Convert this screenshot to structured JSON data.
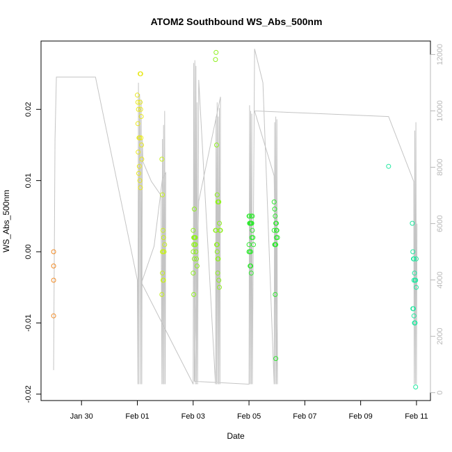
{
  "chart_data": {
    "type": "scatter",
    "title": "ATOM2 Southbound WS_Abs_500nm",
    "xlabel": "Date",
    "ylabel": "WS_Abs_500nm",
    "x_ticks": [
      "Jan 30",
      "Feb 01",
      "Feb 03",
      "Feb 05",
      "Feb 07",
      "Feb 09",
      "Feb 11"
    ],
    "x_tick_days": [
      -1,
      1,
      3,
      5,
      7,
      9,
      11
    ],
    "xlim": [
      -2.45,
      11.5
    ],
    "y_ticks": [
      "-0.02",
      "-0.01",
      "0.00",
      "0.01",
      "0.02"
    ],
    "y_tick_values": [
      -0.02,
      -0.01,
      0.0,
      0.01,
      0.02
    ],
    "ylim": [
      -0.0209,
      0.0296
    ],
    "y2_ticks": [
      "0",
      "2000",
      "4000",
      "6000",
      "8000",
      "10000",
      "12000"
    ],
    "y2_tick_values": [
      0,
      2000,
      4000,
      6000,
      8000,
      10000,
      12000
    ],
    "y2lim": [
      -280,
      12480
    ],
    "grid": false,
    "colors": {
      "orange": "#f28c28",
      "yellow": "#e8e820",
      "yellowgreen": "#c8f020",
      "lime": "#90f020",
      "green": "#30e830",
      "teal": "#20e8a0",
      "line": "#c4c4c4",
      "right_axis": "#b8b8b8"
    },
    "series": [
      {
        "color_key": "orange",
        "x": [
          -2.0,
          -2.0,
          -2.0,
          -2.0
        ],
        "y": [
          0.0,
          -0.002,
          -0.004,
          -0.009
        ]
      },
      {
        "color_key": "yellow",
        "x": [
          1.0,
          1.02,
          1.04,
          1.06,
          1.08,
          1.1,
          1.12,
          1.14,
          1.16,
          1.05,
          1.07,
          1.09,
          1.02,
          1.03,
          1.11,
          1.13,
          1.15,
          1.1,
          1.12
        ],
        "y": [
          0.022,
          0.021,
          0.02,
          0.016,
          0.016,
          0.025,
          0.025,
          0.019,
          0.013,
          0.011,
          0.012,
          0.01,
          0.018,
          0.014,
          0.009,
          0.016,
          0.015,
          0.021,
          0.02
        ]
      },
      {
        "color_key": "yellowgreen",
        "x": [
          1.88,
          1.9,
          1.92,
          1.94,
          1.96,
          1.98,
          1.9,
          1.92,
          1.88,
          1.94,
          1.9,
          1.92
        ],
        "y": [
          0.013,
          0.008,
          0.003,
          0.002,
          0.0,
          0.001,
          -0.003,
          -0.004,
          -0.006,
          -0.004,
          0.0,
          0.0
        ]
      },
      {
        "color_key": "lime",
        "x": [
          3.0,
          3.02,
          3.04,
          3.06,
          3.08,
          3.1,
          3.12,
          3.14,
          3.0,
          3.02,
          3.04,
          3.0,
          3.02,
          3.06,
          3.08,
          3.04
        ],
        "y": [
          0.003,
          0.002,
          0.002,
          0.001,
          0.001,
          0.0,
          -0.001,
          -0.002,
          -0.003,
          -0.006,
          0.006,
          0.0,
          0.001,
          0.002,
          0.002,
          -0.001
        ]
      },
      {
        "color_key": "lime",
        "x": [
          3.8,
          3.82,
          3.84,
          3.86,
          3.88,
          3.9,
          3.92,
          3.94,
          3.96,
          3.98,
          3.84,
          3.86,
          3.88,
          3.9,
          3.92,
          3.94,
          3.8,
          3.82,
          3.86,
          3.88
        ],
        "y": [
          0.027,
          0.028,
          0.015,
          0.008,
          0.007,
          0.007,
          0.007,
          0.004,
          0.003,
          0.003,
          0.001,
          0.001,
          -0.001,
          -0.001,
          -0.004,
          -0.005,
          0.003,
          0.003,
          0.0,
          -0.003
        ]
      },
      {
        "color_key": "green",
        "x": [
          5.0,
          5.02,
          5.04,
          5.06,
          5.08,
          5.1,
          5.12,
          5.14,
          5.16,
          5.0,
          5.02,
          5.04,
          5.06,
          5.08,
          5.1,
          5.12,
          5.0,
          5.02,
          5.04,
          5.06,
          5.08
        ],
        "y": [
          0.005,
          0.005,
          0.004,
          0.004,
          0.004,
          0.004,
          0.003,
          0.002,
          0.001,
          0.0,
          0.0,
          -0.002,
          -0.002,
          -0.003,
          0.002,
          0.005,
          0.001,
          0.004,
          0.004,
          0.0,
          0.005
        ]
      },
      {
        "color_key": "green",
        "x": [
          5.9,
          5.92,
          5.94,
          5.96,
          5.98,
          6.0,
          6.02,
          5.94,
          5.96,
          5.98,
          5.9,
          5.92,
          5.94,
          5.96,
          5.98
        ],
        "y": [
          0.007,
          0.006,
          0.005,
          0.004,
          0.003,
          0.003,
          0.002,
          0.001,
          0.001,
          0.002,
          0.003,
          0.001,
          -0.006,
          -0.015,
          0.004
        ]
      },
      {
        "color_key": "teal",
        "x": [
          10.0
        ],
        "y": [
          0.012
        ]
      },
      {
        "color_key": "teal",
        "x": [
          10.85,
          10.87,
          10.89,
          10.91,
          10.93,
          10.95,
          10.97,
          10.99,
          10.87,
          10.89,
          10.91,
          10.93,
          10.95,
          10.97,
          10.99,
          10.91,
          10.93
        ],
        "y": [
          0.004,
          0.0,
          -0.001,
          -0.001,
          -0.003,
          -0.004,
          -0.004,
          -0.005,
          -0.008,
          -0.008,
          -0.009,
          -0.01,
          -0.01,
          -0.019,
          -0.001,
          -0.004,
          -0.01
        ]
      }
    ],
    "line_series": {
      "axis": "right",
      "x": [
        -2.0,
        -1.95,
        -1.9,
        -0.5,
        1.0,
        1.02,
        1.04,
        1.06,
        1.08,
        1.1,
        1.12,
        1.14,
        1.16,
        1.18,
        1.2,
        1.5,
        1.85,
        1.88,
        1.9,
        1.92,
        1.94,
        1.96,
        1.98,
        2.0,
        2.02,
        1.9,
        1.6,
        1.15,
        2.95,
        3.0,
        3.02,
        3.04,
        3.06,
        3.08,
        3.1,
        3.12,
        3.14,
        3.16,
        3.2,
        3.8,
        3.82,
        3.84,
        3.86,
        3.88,
        3.9,
        3.92,
        3.94,
        3.96,
        3.98,
        3.2,
        3.05,
        5.0,
        5.02,
        5.04,
        5.06,
        5.08,
        5.1,
        5.12,
        5.2,
        5.5,
        5.9,
        5.92,
        5.94,
        5.96,
        5.98,
        6.0,
        6.02,
        5.9,
        5.2,
        10.0,
        10.9,
        10.92,
        10.94,
        10.96,
        10.98,
        11.0,
        11.02
      ],
      "y": [
        800,
        9000,
        11200,
        11200,
        4000,
        300,
        11000,
        300,
        10600,
        10000,
        300,
        10400,
        300,
        9000,
        8200,
        7500,
        7000,
        300,
        9000,
        300,
        9500,
        300,
        10000,
        300,
        7800,
        7600,
        5200,
        3900,
        400,
        300,
        11700,
        400,
        11800,
        300,
        11600,
        300,
        10300,
        300,
        11100,
        300,
        9800,
        300,
        10300,
        300,
        9800,
        300,
        10100,
        300,
        10500,
        6800,
        400,
        300,
        10200,
        300,
        10000,
        300,
        9900,
        300,
        12200,
        11000,
        300,
        9600,
        300,
        9800,
        300,
        9700,
        300,
        7700,
        10000,
        9800,
        7500,
        300,
        9300,
        300,
        9600,
        300,
        6000
      ]
    }
  }
}
